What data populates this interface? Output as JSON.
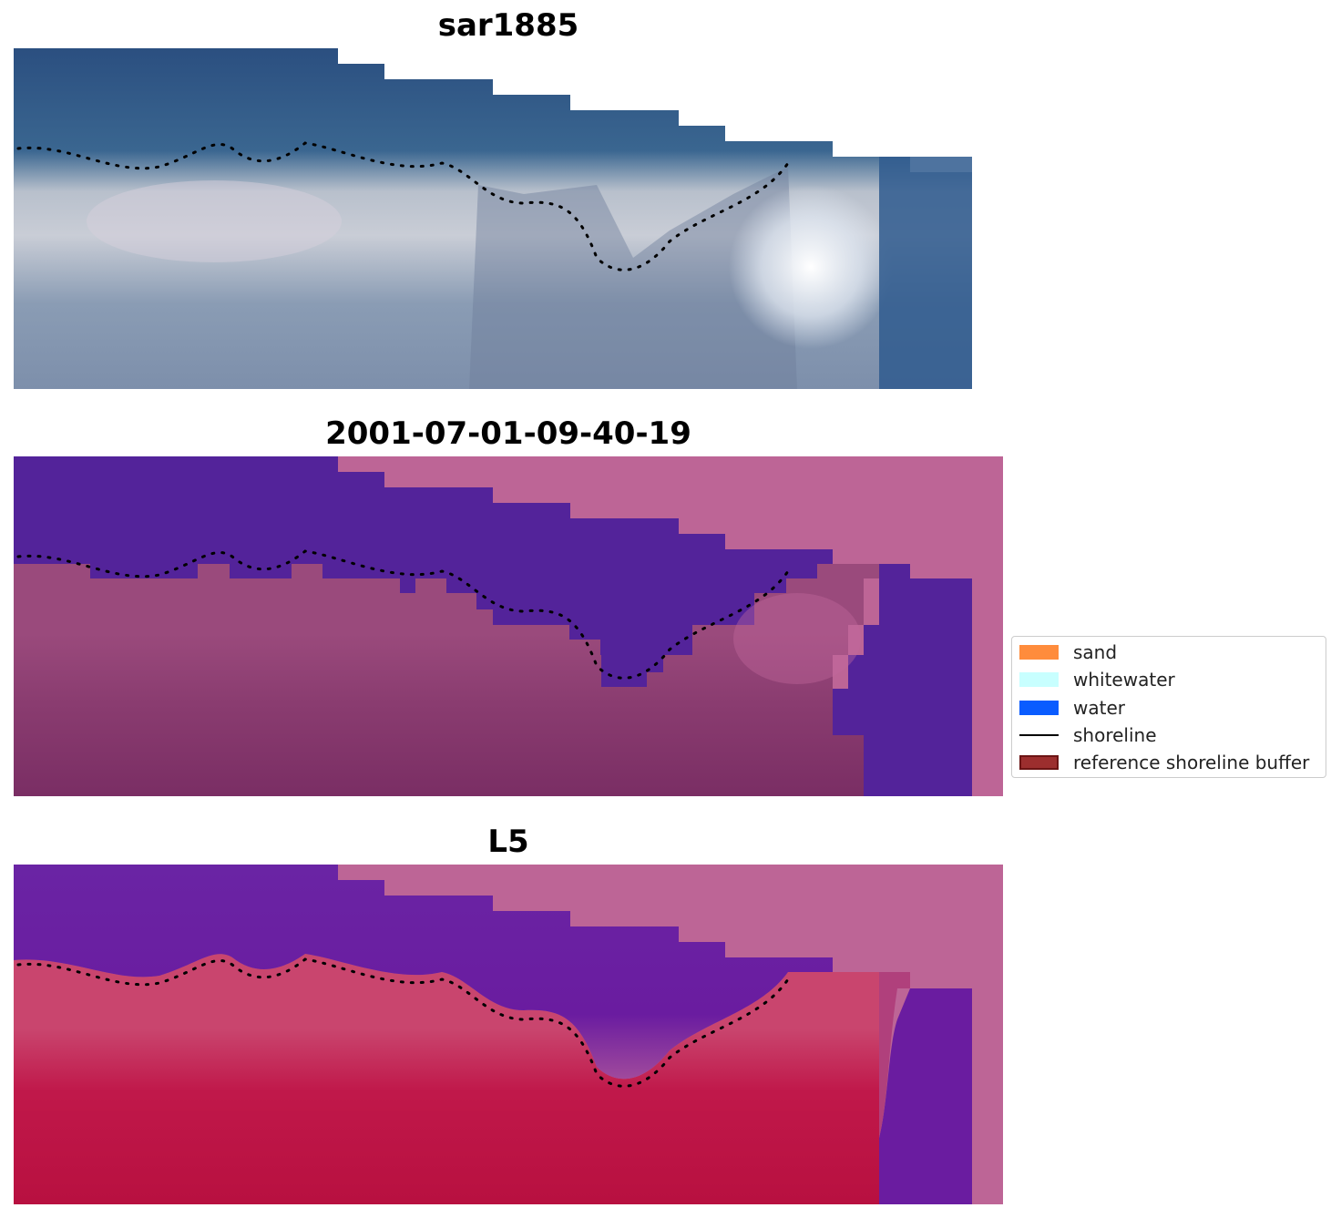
{
  "panels": [
    {
      "title": "sar1885"
    },
    {
      "title": "2001-07-01-09-40-19"
    },
    {
      "title": "L5"
    }
  ],
  "legend": {
    "items": [
      {
        "label": "sand",
        "color": "#ff8c3c",
        "kind": "patch"
      },
      {
        "label": "whitewater",
        "color": "#c8ffff",
        "kind": "patch"
      },
      {
        "label": "water",
        "color": "#0a5cff",
        "kind": "patch"
      },
      {
        "label": "shoreline",
        "color": "#000000",
        "kind": "line"
      },
      {
        "label": "reference shoreline buffer",
        "color": "#9c2e2e",
        "kind": "patch"
      }
    ]
  },
  "colors": {
    "deep_water_rgb": "#2a5082",
    "surf_white": "#d8d8e0",
    "water_class_purple": "#53239a",
    "buffer_pink": "#bd6596",
    "land_mauve": "#8a3c70",
    "land_crimson": "#c0184a",
    "l5_water_violet": "#6a1ca0"
  }
}
